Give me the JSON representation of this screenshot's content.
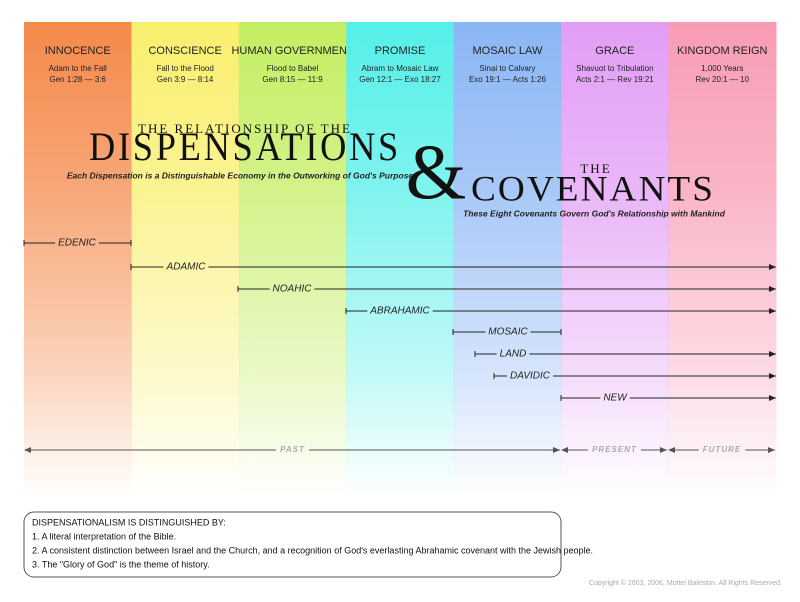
{
  "dispensations": [
    {
      "name": "INNOCENCE",
      "lines": [
        "Adam to the Fall",
        "Gen 1:28 — 3:6"
      ]
    },
    {
      "name": "CONSCIENCE",
      "lines": [
        "Fall to the Flood",
        "Gen 3:9 — 8:14"
      ]
    },
    {
      "name": "HUMAN GOVERNMENT",
      "lines": [
        "Flood to Babel",
        "Gen 8:15 — 11:9"
      ]
    },
    {
      "name": "PROMISE",
      "lines": [
        "Abram to Mosaic Law",
        "Gen 12:1 — Exo 18:27"
      ]
    },
    {
      "name": "MOSAIC LAW",
      "lines": [
        "Sinai to Calvary",
        "Exo 19:1 — Acts 1:26"
      ]
    },
    {
      "name": "GRACE",
      "lines": [
        "Shavuot to Tribulation",
        "Acts 2:1 — Rev 19:21"
      ]
    },
    {
      "name": "KINGDOM REIGN",
      "lines": [
        "1,000 Years",
        "Rev 20:1 — 10"
      ]
    }
  ],
  "title": {
    "pre": "THE RELATIONSHIP OF THE",
    "main": "DISPENSATIONS",
    "sub": "Each Dispensation is a Distinguishable Economy in the Outworking of God's Purpose",
    "amp": "&",
    "pre2": "THE",
    "main2": "COVENANTS",
    "sub2": "These Eight Covenants Govern God's Relationship with Mankind"
  },
  "covenants": [
    "EDENIC",
    "ADAMIC",
    "NOAHIC",
    "ABRAHAMIC",
    "MOSAIC",
    "LAND",
    "DAVIDIC",
    "NEW"
  ],
  "eras": [
    "PAST",
    "PRESENT",
    "FUTURE"
  ],
  "note": {
    "title": "DISPENSATIONALISM IS DISTINGUISHED BY:",
    "items": [
      "1.  A literal interpretation of the Bible.",
      "2.  A consistent distinction between Israel and the Church, and a recognition of God's everlasting Abrahamic covenant with the Jewish people.",
      "3.  The \"Glory of God\" is the theme of history."
    ]
  },
  "copyright": "Copyright © 2003, 2006, Mottel Baleston. All Rights Reserved."
}
